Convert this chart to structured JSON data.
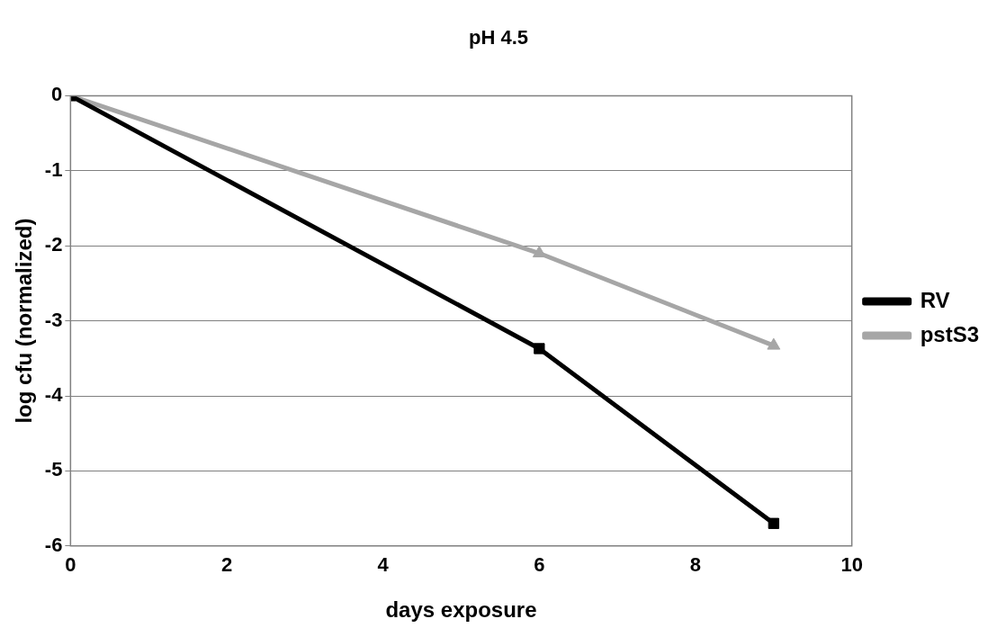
{
  "chart_data": {
    "type": "line",
    "title": "pH 4.5",
    "xlabel": "days exposure",
    "ylabel": "log cfu (normalized)",
    "x": [
      0,
      6,
      9
    ],
    "series": [
      {
        "name": "RV",
        "color": "#000000",
        "marker": "square",
        "values": [
          0,
          -3.37,
          -5.7
        ]
      },
      {
        "name": "pstS3",
        "color": "#a6a6a6",
        "marker": "triangle",
        "values": [
          0,
          -2.1,
          -3.33
        ]
      }
    ],
    "xlim": [
      0,
      10
    ],
    "xticks": [
      0,
      2,
      4,
      6,
      8,
      10
    ],
    "ylim": [
      -6,
      0
    ],
    "yticks": [
      -6,
      -5,
      -4,
      -3,
      -2,
      -1,
      0
    ],
    "grid": "y",
    "legend": "right",
    "line_style": "solid"
  }
}
